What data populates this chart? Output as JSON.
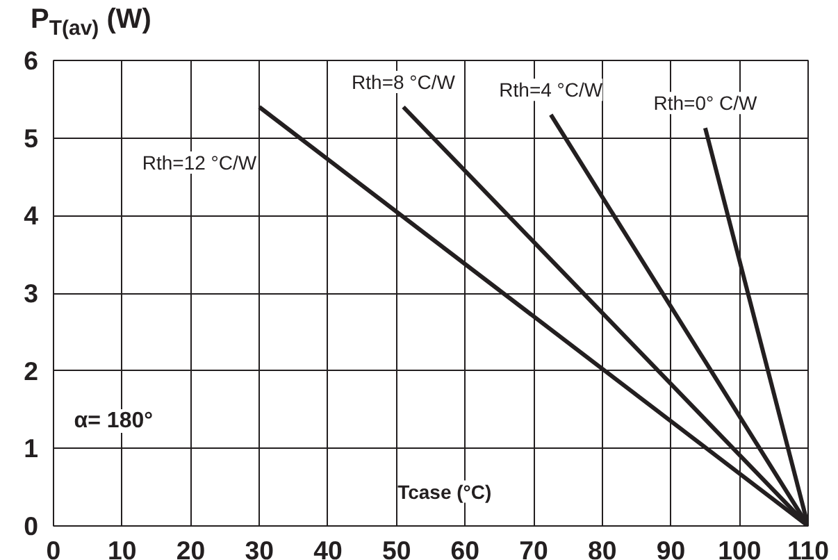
{
  "chart_data": {
    "type": "line",
    "ylabel": "P$_{T(av)}$ (W)",
    "xlabel": "Tcase (°C)",
    "annotations": [
      "α= 180°"
    ],
    "xlim": [
      0,
      110
    ],
    "ylim": [
      0,
      6
    ],
    "xticks": [
      0,
      10,
      20,
      30,
      40,
      50,
      60,
      70,
      80,
      90,
      100,
      110
    ],
    "yticks": [
      0,
      1,
      2,
      3,
      4,
      5,
      6
    ],
    "grid": true,
    "marker": "none",
    "line_style": "solid",
    "series": [
      {
        "name": "Rth=12 °C/W",
        "color": "#231f20",
        "x": [
          30,
          110
        ],
        "values": [
          5.4,
          0
        ]
      },
      {
        "name": "Rth=8 °C/W",
        "color": "#231f20",
        "x": [
          51,
          110
        ],
        "values": [
          5.4,
          0
        ]
      },
      {
        "name": "Rth=4 °C/W",
        "color": "#231f20",
        "x": [
          72.5,
          110
        ],
        "values": [
          5.3,
          0
        ]
      },
      {
        "name": "Rth=0° C/W",
        "color": "#231f20",
        "x": [
          95,
          110
        ],
        "values": [
          5.13,
          0
        ]
      }
    ]
  }
}
